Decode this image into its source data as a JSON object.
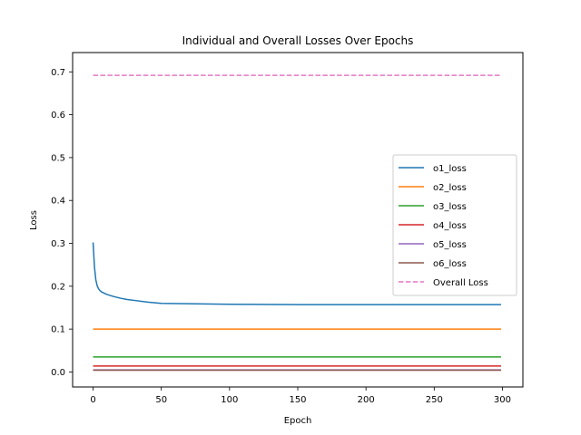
{
  "chart_data": {
    "type": "line",
    "title": "Individual and Overall Losses Over Epochs",
    "xlabel": "Epoch",
    "ylabel": "Loss",
    "xlim": [
      -15,
      315
    ],
    "ylim": [
      -0.035,
      0.745
    ],
    "xticks": [
      0,
      50,
      100,
      150,
      200,
      250,
      300
    ],
    "yticks": [
      0.0,
      0.1,
      0.2,
      0.3,
      0.4,
      0.5,
      0.6,
      0.7
    ],
    "ytick_labels": [
      "0.0",
      "0.1",
      "0.2",
      "0.3",
      "0.4",
      "0.5",
      "0.6",
      "0.7"
    ],
    "grid": false,
    "legend_position": "center-right",
    "series": [
      {
        "name": "o1_loss",
        "color": "#1f77b4",
        "style": "solid",
        "x": [
          0,
          1,
          2,
          3,
          4,
          5,
          6,
          8,
          10,
          15,
          20,
          25,
          30,
          40,
          50,
          75,
          100,
          150,
          200,
          250,
          299
        ],
        "y": [
          0.302,
          0.245,
          0.215,
          0.201,
          0.194,
          0.19,
          0.187,
          0.184,
          0.181,
          0.176,
          0.172,
          0.169,
          0.167,
          0.163,
          0.16,
          0.159,
          0.158,
          0.157,
          0.157,
          0.157,
          0.157
        ]
      },
      {
        "name": "o2_loss",
        "color": "#ff7f0e",
        "style": "solid",
        "x": [
          0,
          299
        ],
        "y": [
          0.1,
          0.1
        ]
      },
      {
        "name": "o3_loss",
        "color": "#2ca02c",
        "style": "solid",
        "x": [
          0,
          299
        ],
        "y": [
          0.035,
          0.035
        ]
      },
      {
        "name": "o4_loss",
        "color": "#d62728",
        "style": "solid",
        "x": [
          0,
          299
        ],
        "y": [
          0.014,
          0.014
        ]
      },
      {
        "name": "o5_loss",
        "color": "#9467bd",
        "style": "solid",
        "x": [
          0,
          299
        ],
        "y": [
          0.005,
          0.005
        ]
      },
      {
        "name": "o6_loss",
        "color": "#8c564b",
        "style": "solid",
        "x": [
          0,
          299
        ],
        "y": [
          0.004,
          0.004
        ]
      },
      {
        "name": "Overall Loss",
        "color": "#e377c2",
        "style": "dashed",
        "x": [
          0,
          299
        ],
        "y": [
          0.692,
          0.692
        ]
      }
    ]
  }
}
